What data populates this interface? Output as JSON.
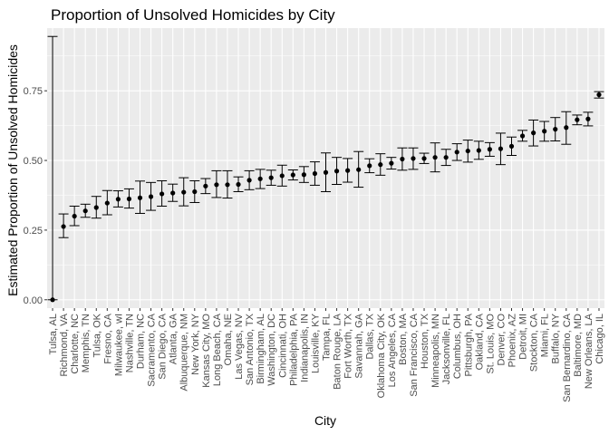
{
  "chart_data": {
    "type": "scatter",
    "title": "Proportion of Unsolved Homicides by City",
    "xlabel": "City",
    "ylabel": "Estimated Proportion of Unsolved Homicides",
    "ylim": [
      -0.03,
      0.975
    ],
    "yticks": [
      0.0,
      0.25,
      0.5,
      0.75
    ],
    "ytick_labels": [
      "0.00",
      "0.25",
      "0.50",
      "0.75"
    ],
    "grid": true,
    "legend": "none",
    "colors": {
      "panel": "#ebebeb",
      "grid_major": "#ffffff",
      "point": "#000000",
      "axis_text": "#4d4d4d"
    },
    "points": [
      {
        "city": "Tulsa, AL",
        "estimate": 0.0,
        "low": 0.0,
        "high": 0.945
      },
      {
        "city": "Richmond, VA",
        "estimate": 0.263,
        "low": 0.223,
        "high": 0.308
      },
      {
        "city": "Charlotte, NC",
        "estimate": 0.3,
        "low": 0.266,
        "high": 0.336
      },
      {
        "city": "Memphis, TN",
        "estimate": 0.319,
        "low": 0.296,
        "high": 0.343
      },
      {
        "city": "Tulsa, OK",
        "estimate": 0.331,
        "low": 0.293,
        "high": 0.371
      },
      {
        "city": "Fresno, CA",
        "estimate": 0.347,
        "low": 0.305,
        "high": 0.392
      },
      {
        "city": "Milwaukee, wI",
        "estimate": 0.361,
        "low": 0.333,
        "high": 0.391
      },
      {
        "city": "Nashville, TN",
        "estimate": 0.362,
        "low": 0.329,
        "high": 0.398
      },
      {
        "city": "Durham, NC",
        "estimate": 0.366,
        "low": 0.31,
        "high": 0.426
      },
      {
        "city": "Sacramento, CA",
        "estimate": 0.37,
        "low": 0.321,
        "high": 0.421
      },
      {
        "city": "San Diego, CA",
        "estimate": 0.38,
        "low": 0.336,
        "high": 0.427
      },
      {
        "city": "Atlanta, GA",
        "estimate": 0.383,
        "low": 0.353,
        "high": 0.415
      },
      {
        "city": "Albuquerque, NM",
        "estimate": 0.386,
        "low": 0.337,
        "high": 0.438
      },
      {
        "city": "New York, NY",
        "estimate": 0.388,
        "low": 0.349,
        "high": 0.427
      },
      {
        "city": "Kansas City, MO",
        "estimate": 0.408,
        "low": 0.381,
        "high": 0.435
      },
      {
        "city": "Long Beach, CA",
        "estimate": 0.413,
        "low": 0.367,
        "high": 0.463
      },
      {
        "city": "Omaha, NE",
        "estimate": 0.413,
        "low": 0.365,
        "high": 0.463
      },
      {
        "city": "Las Vegas, NV",
        "estimate": 0.414,
        "low": 0.388,
        "high": 0.441
      },
      {
        "city": "San Antonio, TX",
        "estimate": 0.429,
        "low": 0.395,
        "high": 0.463
      },
      {
        "city": "Birmingham, AL",
        "estimate": 0.434,
        "low": 0.399,
        "high": 0.468
      },
      {
        "city": "Washington, DC",
        "estimate": 0.438,
        "low": 0.411,
        "high": 0.465
      },
      {
        "city": "Cincinnati, OH",
        "estimate": 0.445,
        "low": 0.408,
        "high": 0.483
      },
      {
        "city": "Philadelphia, PA",
        "estimate": 0.448,
        "low": 0.43,
        "high": 0.466
      },
      {
        "city": "Indianapolis, IN",
        "estimate": 0.449,
        "low": 0.421,
        "high": 0.478
      },
      {
        "city": "Louisville, KY",
        "estimate": 0.453,
        "low": 0.411,
        "high": 0.495
      },
      {
        "city": "Tampa, FL",
        "estimate": 0.457,
        "low": 0.388,
        "high": 0.527
      },
      {
        "city": "Baton Rouge, LA",
        "estimate": 0.462,
        "low": 0.414,
        "high": 0.511
      },
      {
        "city": "Fort Worth, TX",
        "estimate": 0.464,
        "low": 0.422,
        "high": 0.507
      },
      {
        "city": "Savannah, GA",
        "estimate": 0.467,
        "low": 0.404,
        "high": 0.532
      },
      {
        "city": "Dallas, TX",
        "estimate": 0.481,
        "low": 0.456,
        "high": 0.506
      },
      {
        "city": "Oklahoma City, OK",
        "estimate": 0.485,
        "low": 0.447,
        "high": 0.524
      },
      {
        "city": "Los Angeles, CA",
        "estimate": 0.49,
        "low": 0.469,
        "high": 0.511
      },
      {
        "city": "Boston, MA",
        "estimate": 0.505,
        "low": 0.465,
        "high": 0.545
      },
      {
        "city": "San Francisco, CA",
        "estimate": 0.507,
        "low": 0.468,
        "high": 0.545
      },
      {
        "city": "Houston, TX",
        "estimate": 0.507,
        "low": 0.489,
        "high": 0.526
      },
      {
        "city": "Minneapolis, MN",
        "estimate": 0.511,
        "low": 0.459,
        "high": 0.563
      },
      {
        "city": "Jacksonville, FL",
        "estimate": 0.511,
        "low": 0.482,
        "high": 0.54
      },
      {
        "city": "Columbus, OH",
        "estimate": 0.53,
        "low": 0.5,
        "high": 0.56
      },
      {
        "city": "Pittsburgh, PA",
        "estimate": 0.534,
        "low": 0.494,
        "high": 0.573
      },
      {
        "city": "Oakland, CA",
        "estimate": 0.536,
        "low": 0.504,
        "high": 0.569
      },
      {
        "city": "St. Louis, MO",
        "estimate": 0.54,
        "low": 0.515,
        "high": 0.564
      },
      {
        "city": "Denver, CO",
        "estimate": 0.542,
        "low": 0.485,
        "high": 0.598
      },
      {
        "city": "Phoenix, AZ",
        "estimate": 0.551,
        "low": 0.518,
        "high": 0.584
      },
      {
        "city": "Detroit, MI",
        "estimate": 0.588,
        "low": 0.569,
        "high": 0.608
      },
      {
        "city": "Stockton, CA",
        "estimate": 0.599,
        "low": 0.552,
        "high": 0.645
      },
      {
        "city": "Miami, FL",
        "estimate": 0.605,
        "low": 0.569,
        "high": 0.64
      },
      {
        "city": "Buffalo, NY",
        "estimate": 0.612,
        "low": 0.57,
        "high": 0.654
      },
      {
        "city": "San Bernardino, CA",
        "estimate": 0.618,
        "low": 0.558,
        "high": 0.675
      },
      {
        "city": "Baltimore, MD",
        "estimate": 0.646,
        "low": 0.628,
        "high": 0.663
      },
      {
        "city": "New Orleans, LA",
        "estimate": 0.649,
        "low": 0.624,
        "high": 0.673
      },
      {
        "city": "Chicago, IL",
        "estimate": 0.736,
        "low": 0.724,
        "high": 0.747
      }
    ]
  }
}
